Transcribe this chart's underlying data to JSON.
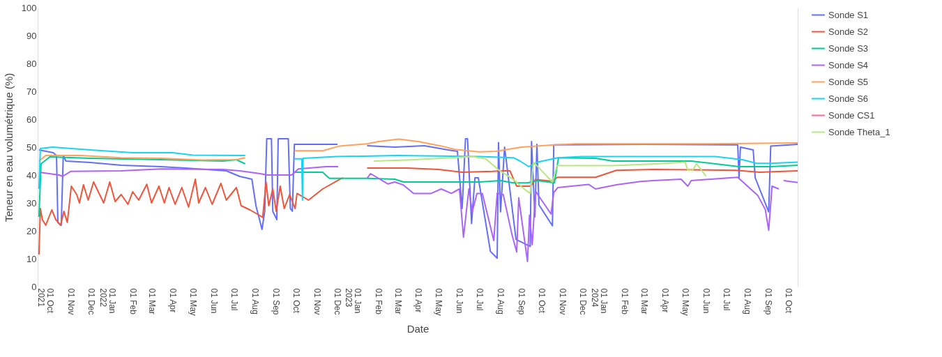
{
  "chart_data": {
    "type": "line",
    "xlabel": "Date",
    "ylabel": "Teneur en eau volumétrique (%)",
    "xlim": [
      "2021-09-13",
      "2024-10-15"
    ],
    "xticks": [
      {
        "value": "2021-10-01",
        "label": "01 Oct\n2021"
      },
      {
        "value": "2021-11-01",
        "label": "01 Nov"
      },
      {
        "value": "2021-12-01",
        "label": "01 Dec"
      },
      {
        "value": "2022-01-01",
        "label": "01 Jan\n2022"
      },
      {
        "value": "2022-02-01",
        "label": "01 Feb"
      },
      {
        "value": "2022-03-01",
        "label": "01 Mar"
      },
      {
        "value": "2022-04-01",
        "label": "01 Apr"
      },
      {
        "value": "2022-05-01",
        "label": "01 May"
      },
      {
        "value": "2022-06-01",
        "label": "01 Jun"
      },
      {
        "value": "2022-07-01",
        "label": "01 Jul"
      },
      {
        "value": "2022-08-01",
        "label": "01 Aug"
      },
      {
        "value": "2022-09-01",
        "label": "01 Sep"
      },
      {
        "value": "2022-10-01",
        "label": "01 Oct"
      },
      {
        "value": "2022-11-01",
        "label": "01 Nov"
      },
      {
        "value": "2022-12-01",
        "label": "01 Dec"
      },
      {
        "value": "2023-01-01",
        "label": "01 Jan\n2023"
      },
      {
        "value": "2023-02-01",
        "label": "01 Feb"
      },
      {
        "value": "2023-03-01",
        "label": "01 Mar"
      },
      {
        "value": "2023-04-01",
        "label": "01 Apr"
      },
      {
        "value": "2023-05-01",
        "label": "01 May"
      },
      {
        "value": "2023-06-01",
        "label": "01 Jun"
      },
      {
        "value": "2023-07-01",
        "label": "01 Jul"
      },
      {
        "value": "2023-08-01",
        "label": "01 Aug"
      },
      {
        "value": "2023-09-01",
        "label": "01 Sep"
      },
      {
        "value": "2023-10-01",
        "label": "01 Oct"
      },
      {
        "value": "2023-11-01",
        "label": "01 Nov"
      },
      {
        "value": "2023-12-01",
        "label": "01 Dec"
      },
      {
        "value": "2024-01-01",
        "label": "01 Jan\n2024"
      },
      {
        "value": "2024-02-01",
        "label": "01 Feb"
      },
      {
        "value": "2024-03-01",
        "label": "01 Mar"
      },
      {
        "value": "2024-04-01",
        "label": "01 Apr"
      },
      {
        "value": "2024-05-01",
        "label": "01 May"
      },
      {
        "value": "2024-06-01",
        "label": "01 Jun"
      },
      {
        "value": "2024-07-01",
        "label": "01 Jul"
      },
      {
        "value": "2024-08-01",
        "label": "01 Aug"
      },
      {
        "value": "2024-09-01",
        "label": "01 Sep"
      },
      {
        "value": "2024-10-01",
        "label": "01 Oct"
      }
    ],
    "ylim": [
      0,
      100
    ],
    "yticks": [
      0,
      10,
      20,
      30,
      40,
      50,
      60,
      70,
      80,
      90,
      100
    ],
    "grid": true,
    "legend": "top right",
    "series": [
      {
        "name": "Sonde S1",
        "color": "#636efa",
        "x": [
          "2021-09-15",
          "2021-10-06",
          "2021-10-11",
          "2021-10-13",
          "2021-10-18",
          "2021-10-21",
          "2021-10-25",
          "2021-11-30",
          "2022-01-15",
          "2022-03-15",
          "2022-04-20",
          "2022-05-20",
          "2022-06-20",
          "2022-07-10",
          "2022-07-28",
          "2022-08-03",
          "2022-08-12",
          "2022-08-16",
          "2022-08-19",
          "2022-08-26",
          "2022-08-28",
          "2022-09-03",
          "2022-09-05",
          "2022-09-20",
          "2022-09-23",
          "2022-09-26",
          "2022-09-29",
          "2022-10-31",
          "2022-12-02",
          "2022-12-03",
          "2023-01-15",
          "2023-02-25",
          "2023-04-10",
          "2023-05-15",
          "2023-05-29",
          "2023-06-05",
          "2023-06-10",
          "2023-06-13",
          "2023-06-19",
          "2023-06-24",
          "2023-06-29",
          "2023-07-17",
          "2023-07-27",
          "2023-07-29",
          "2023-08-01",
          "2023-08-07",
          "2023-08-24",
          "2023-09-14",
          "2023-09-16",
          "2023-09-21",
          "2023-09-24",
          "2023-09-27",
          "2023-10-17",
          "2023-10-19",
          "2024-03-01",
          "2024-07-18",
          "2024-07-20",
          "2024-07-22",
          "2024-08-10",
          "2024-08-13",
          "2024-09-02",
          "2024-09-05",
          "2024-10-15"
        ],
        "values": [
          49,
          48,
          47,
          23,
          22,
          47,
          45,
          44.5,
          43.5,
          43,
          42.5,
          42,
          41.5,
          39.5,
          38.5,
          29,
          20.5,
          27,
          53,
          53,
          27,
          24,
          53,
          53,
          28,
          27,
          51,
          51,
          51,
          null,
          50.5,
          50,
          50.5,
          49,
          48.5,
          28,
          53,
          53,
          22.6,
          39,
          39,
          12.6,
          10.2,
          51.6,
          26.8,
          50,
          16.9,
          14.4,
          52,
          25,
          51,
          29.3,
          21.8,
          50.8,
          51,
          50.8,
          39,
          50,
          49,
          39,
          26.8,
          50.4,
          51
        ]
      },
      {
        "name": "Sonde S2",
        "color": "#ef553b",
        "x": [
          "2021-09-15",
          "2021-09-17",
          "2021-09-20",
          "2021-09-25",
          "2021-10-04",
          "2021-10-10",
          "2021-10-17",
          "2021-10-22",
          "2021-10-27",
          "2021-11-02",
          "2021-11-10",
          "2021-11-14",
          "2021-11-20",
          "2021-11-27",
          "2021-12-05",
          "2021-12-12",
          "2021-12-20",
          "2021-12-29",
          "2022-01-06",
          "2022-01-15",
          "2022-01-25",
          "2022-02-01",
          "2022-02-10",
          "2022-02-22",
          "2022-03-01",
          "2022-03-12",
          "2022-03-20",
          "2022-03-27",
          "2022-04-05",
          "2022-04-15",
          "2022-04-25",
          "2022-05-05",
          "2022-05-10",
          "2022-05-20",
          "2022-05-30",
          "2022-06-12",
          "2022-06-20",
          "2022-07-05",
          "2022-07-12",
          "2022-07-25",
          "2022-08-05",
          "2022-08-13",
          "2022-08-18",
          "2022-08-22",
          "2022-08-28",
          "2022-09-02",
          "2022-09-08",
          "2022-09-14",
          "2022-09-22",
          "2022-09-30",
          "2022-10-03",
          "2022-10-20",
          "2022-11-10",
          "2022-12-05",
          "2022-12-10",
          "2022-12-11",
          "2023-01-15",
          "2023-03-15",
          "2023-05-01",
          "2023-06-05",
          "2023-07-20",
          "2023-08-05",
          "2023-08-15",
          "2023-08-25",
          "2023-09-15",
          "2023-09-22",
          "2023-10-15",
          "2023-10-25",
          "2023-12-20",
          "2024-01-20",
          "2024-03-15",
          "2024-07-15",
          "2024-08-20",
          "2024-10-15"
        ],
        "values": [
          11.5,
          28,
          24,
          22,
          27.5,
          24,
          22,
          27,
          23,
          36,
          33,
          30,
          36.5,
          31,
          37.5,
          34,
          30,
          37.5,
          30.5,
          33,
          29.5,
          34,
          31,
          36.7,
          30,
          36,
          30,
          35.5,
          29.5,
          35.5,
          28.5,
          38.5,
          30,
          35.5,
          29.5,
          37,
          31,
          35.5,
          29,
          27.5,
          26,
          24.8,
          37.5,
          29,
          35,
          27,
          36,
          28,
          33,
          28,
          33.4,
          31,
          35,
          38.4,
          39,
          null,
          42.5,
          42.5,
          42,
          41,
          41.3,
          41.5,
          41.5,
          36,
          36,
          38.4,
          37.8,
          39.2,
          39.2,
          41.7,
          42,
          41.7,
          41,
          41.5
        ]
      },
      {
        "name": "Sonde S3",
        "color": "#00cc96",
        "x": [
          "2021-09-15",
          "2021-09-18",
          "2021-10-01",
          "2021-11-30",
          "2022-03-15",
          "2022-06-15",
          "2022-07-05",
          "2022-07-18",
          "2022-07-19",
          "2022-09-29",
          "2022-11-10",
          "2022-11-20",
          "2023-01-15",
          "2023-02-25",
          "2023-03-10",
          "2023-07-01",
          "2023-08-01",
          "2023-08-20",
          "2023-09-10",
          "2023-09-25",
          "2023-10-20",
          "2023-10-26",
          "2023-12-20",
          "2024-01-15",
          "2024-05-10",
          "2024-06-15",
          "2024-07-20",
          "2024-09-05",
          "2024-10-15"
        ],
        "values": [
          25,
          44,
          46.5,
          46,
          45.5,
          45,
          45.5,
          44,
          null,
          41,
          41,
          38.8,
          38.8,
          38.5,
          37.5,
          37.5,
          38,
          37.2,
          37.2,
          38,
          37.2,
          46.2,
          46,
          45,
          45,
          44,
          43,
          43,
          43.5
        ]
      },
      {
        "name": "Sonde S4",
        "color": "#ab63fa",
        "x": [
          "2021-09-15",
          "2021-10-15",
          "2021-10-20",
          "2021-11-01",
          "2022-01-15",
          "2022-03-15",
          "2022-06-15",
          "2022-07-10",
          "2022-08-09",
          "2022-08-20",
          "2022-09-25",
          "2022-10-05",
          "2022-11-15",
          "2022-12-03",
          "2022-12-04",
          "2023-01-15",
          "2023-01-20",
          "2023-02-15",
          "2023-02-25",
          "2023-03-10",
          "2023-03-25",
          "2023-04-20",
          "2023-05-05",
          "2023-05-20",
          "2023-06-01",
          "2023-06-07",
          "2023-06-15",
          "2023-06-20",
          "2023-06-27",
          "2023-07-05",
          "2023-07-22",
          "2023-07-27",
          "2023-08-05",
          "2023-08-18",
          "2023-08-25",
          "2023-08-28",
          "2023-09-10",
          "2023-09-13",
          "2023-09-17",
          "2023-09-22",
          "2023-10-15",
          "2023-10-19",
          "2023-10-25",
          "2023-12-10",
          "2023-12-20",
          "2024-01-20",
          "2024-02-25",
          "2024-03-15",
          "2024-04-25",
          "2024-05-05",
          "2024-05-10",
          "2024-07-18",
          "2024-08-17",
          "2024-08-28",
          "2024-09-02",
          "2024-09-07",
          "2024-09-17",
          "2024-09-20",
          "2024-09-24",
          "2024-10-15"
        ],
        "values": [
          41,
          40,
          39.5,
          41.3,
          41.5,
          42.2,
          42,
          41.5,
          40.5,
          40,
          40,
          42.2,
          43,
          43,
          null,
          38.8,
          40.5,
          36.8,
          37.5,
          36.4,
          33.4,
          33.4,
          35,
          33.4,
          35,
          17.7,
          35,
          26.8,
          33.4,
          33.4,
          16.5,
          33.5,
          33,
          18.6,
          12.4,
          31.8,
          9,
          25.6,
          15,
          34.2,
          26,
          33.7,
          35.5,
          36.6,
          35,
          36.5,
          37.7,
          38,
          38.5,
          36,
          38,
          39.2,
          32.6,
          27.6,
          20.2,
          36,
          35,
          null,
          38,
          37.3
        ]
      },
      {
        "name": "Sonde S5",
        "color": "#ffa15a",
        "x": [
          "2021-09-15",
          "2021-09-25",
          "2021-11-15",
          "2022-01-15",
          "2022-03-15",
          "2022-05-15",
          "2022-07-05",
          "2022-07-18",
          "2022-07-19",
          "2022-09-29",
          "2022-11-10",
          "2022-12-05",
          "2023-01-15",
          "2023-02-01",
          "2023-03-03",
          "2023-04-01",
          "2023-05-05",
          "2023-05-25",
          "2023-06-30",
          "2023-07-25",
          "2023-09-01",
          "2023-10-20",
          "2023-11-20",
          "2024-06-01",
          "2024-10-15"
        ],
        "values": [
          45,
          47,
          47,
          46.2,
          46,
          45.4,
          45.5,
          46.2,
          null,
          48.7,
          48.7,
          50.4,
          51.2,
          52,
          52.9,
          52,
          50.4,
          49.2,
          48.3,
          48.5,
          50,
          50.8,
          51.2,
          51.2,
          51.5
        ]
      },
      {
        "name": "Sonde S6",
        "color": "#19d3f3",
        "x": [
          "2021-09-15",
          "2021-09-17",
          "2021-10-05",
          "2021-11-30",
          "2022-02-01",
          "2022-04-01",
          "2022-05-01",
          "2022-07-18",
          "2022-07-19",
          "2022-09-29",
          "2022-10-10",
          "2022-10-11",
          "2022-10-12",
          "2022-12-01",
          "2023-03-01",
          "2023-07-01",
          "2023-08-20",
          "2023-08-30",
          "2023-09-12",
          "2023-09-25",
          "2023-10-25",
          "2023-11-30",
          "2024-06-15",
          "2024-07-25",
          "2024-08-15",
          "2024-09-05",
          "2024-10-15"
        ],
        "values": [
          35,
          49.5,
          50,
          49,
          48,
          48,
          47.1,
          47,
          null,
          45.8,
          45.8,
          31,
          46,
          46.6,
          47,
          46.6,
          46.2,
          45,
          43,
          44.6,
          46.2,
          46.6,
          46.6,
          45.5,
          44.2,
          44.2,
          44.6
        ]
      },
      {
        "name": "Sonde CS1",
        "color": "#ff6692"
      },
      {
        "name": "Sonde Theta_1",
        "color": "#b6e880",
        "x": [
          "2023-01-25",
          "2023-03-15",
          "2023-05-20",
          "2023-06-20",
          "2023-07-10",
          "2023-07-30",
          "2023-08-20",
          "2023-09-05",
          "2023-09-14",
          "2023-09-19",
          "2023-10-17",
          "2023-10-24",
          "2024-01-15",
          "2024-03-20",
          "2024-05-01",
          "2024-05-05",
          "2024-05-12",
          "2024-05-18",
          "2024-06-01"
        ],
        "values": [
          45,
          45.4,
          46.2,
          46.6,
          45.8,
          41.7,
          38.4,
          35,
          33.4,
          44.6,
          37.5,
          43.4,
          43.4,
          44,
          44.6,
          41.7,
          41.7,
          44,
          39.6
        ]
      }
    ]
  }
}
